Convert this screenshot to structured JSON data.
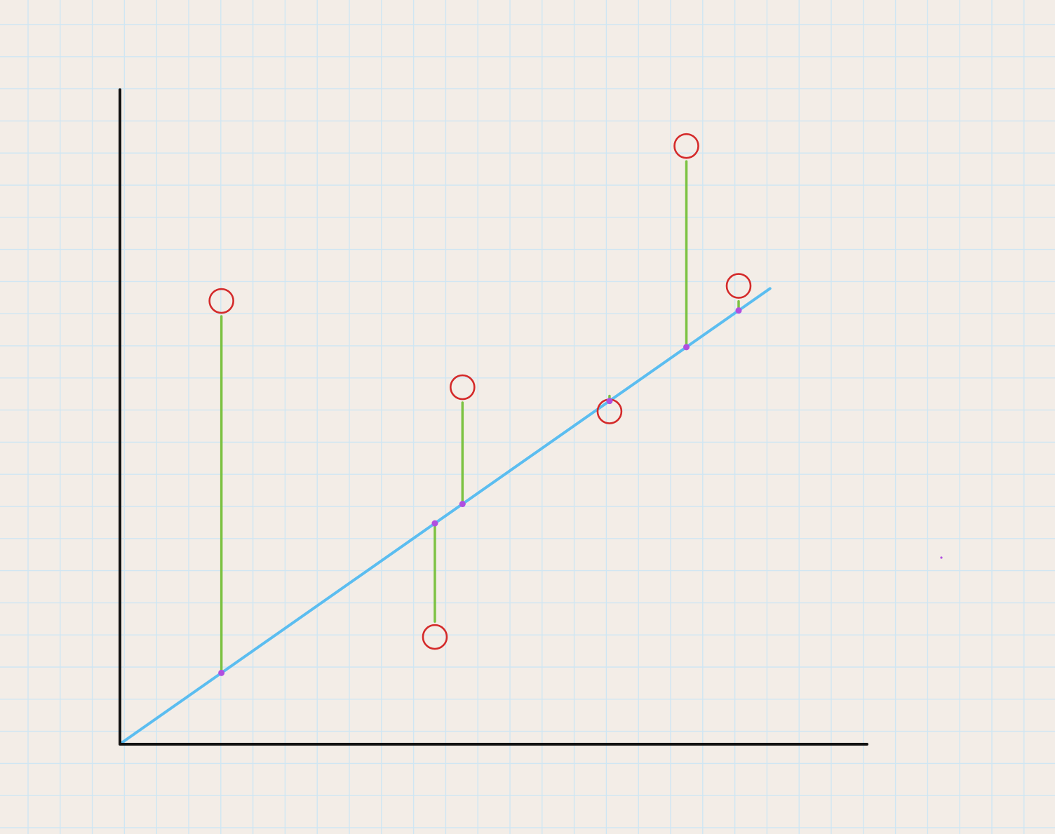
{
  "diagram": {
    "type": "regression-residuals-sketch",
    "colors": {
      "background": "#f3ede7",
      "grid": "#cfe6f3",
      "axis": "#111111",
      "fit_line": "#5bbdf0",
      "residual": "#7cc242",
      "observed_marker": "#d42a2a",
      "projection_dot": "#b04fe0"
    },
    "grid": true,
    "x_range": [
      0,
      1
    ],
    "y_range": [
      0,
      1
    ],
    "fit_line": {
      "intercept": 0.0,
      "slope": 0.8
    },
    "points": [
      {
        "x": 0.135,
        "y": 0.677
      },
      {
        "x": 0.421,
        "y": 0.163
      },
      {
        "x": 0.458,
        "y": 0.545
      },
      {
        "x": 0.655,
        "y": 0.508
      },
      {
        "x": 0.758,
        "y": 0.914
      },
      {
        "x": 0.828,
        "y": 0.7
      }
    ]
  }
}
